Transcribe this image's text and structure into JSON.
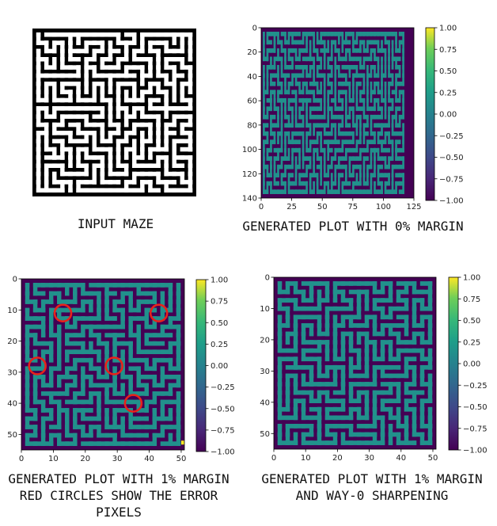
{
  "captions": {
    "input": "INPUT MAZE",
    "plot0": "GENERATED PLOT WITH 0% MARGIN",
    "plot1_line1": "GENERATED PLOT WITH 1% MARGIN",
    "plot1_line2": "RED CIRCLES SHOW THE ERROR",
    "plot1_line3": "PIXELS",
    "plot2_line1": "GENERATED PLOT WITH 1% MARGIN",
    "plot2_line2": "AND WAY-0 SHARPENING"
  },
  "colors": {
    "wall": "#440154",
    "path": "#21918c",
    "bright": "#fde725",
    "circle": "#e8221a",
    "maze_wall": "#000000",
    "maze_path": "#ffffff"
  },
  "chart_data": [
    {
      "panel": "input-maze",
      "type": "heatmap",
      "axes": "off",
      "maze_grid": [
        20,
        20
      ],
      "title": "",
      "xlabel": "",
      "ylabel": ""
    },
    {
      "panel": "plot-0-margin",
      "type": "heatmap",
      "xlim": [
        0,
        125
      ],
      "ylim": [
        0,
        140
      ],
      "xticks": [
        0,
        25,
        50,
        75,
        100,
        125
      ],
      "yticks": [
        0,
        20,
        40,
        60,
        80,
        100,
        120,
        140
      ],
      "maze_grid": [
        40,
        20
      ],
      "colorbar": {
        "range": [
          -1.0,
          1.0
        ],
        "ticks": [
          "1.00",
          "0.75",
          "0.50",
          "0.25",
          "0.00",
          "−0.25",
          "−0.50",
          "−0.75",
          "−1.00"
        ]
      },
      "xlabel": "",
      "ylabel": ""
    },
    {
      "panel": "plot-1-margin",
      "type": "heatmap",
      "xlim": [
        0,
        51
      ],
      "ylim": [
        0,
        55
      ],
      "xticks": [
        0,
        10,
        20,
        30,
        40,
        50
      ],
      "yticks": [
        0,
        10,
        20,
        30,
        40,
        50
      ],
      "maze_grid": [
        20,
        20
      ],
      "colorbar": {
        "range": [
          -1.0,
          1.0
        ],
        "ticks": [
          "1.00",
          "0.75",
          "0.50",
          "0.25",
          "0.00",
          "−0.25",
          "−0.50",
          "−0.75",
          "−1.00"
        ]
      },
      "error_circles": [
        {
          "x": 13,
          "y": 11
        },
        {
          "x": 43,
          "y": 11
        },
        {
          "x": 5,
          "y": 28
        },
        {
          "x": 29,
          "y": 28
        },
        {
          "x": 35,
          "y": 40
        }
      ],
      "xlabel": "",
      "ylabel": ""
    },
    {
      "panel": "plot-1-margin-sharpened",
      "type": "heatmap",
      "xlim": [
        0,
        51
      ],
      "ylim": [
        0,
        55
      ],
      "xticks": [
        0,
        10,
        20,
        30,
        40,
        50
      ],
      "yticks": [
        0,
        10,
        20,
        30,
        40,
        50
      ],
      "maze_grid": [
        20,
        20
      ],
      "colorbar": {
        "range": [
          -1.0,
          1.0
        ],
        "ticks": [
          "1.00",
          "0.75",
          "0.50",
          "0.25",
          "0.00",
          "−0.25",
          "−0.50",
          "−0.75",
          "−1.00"
        ]
      },
      "xlabel": "",
      "ylabel": ""
    }
  ]
}
